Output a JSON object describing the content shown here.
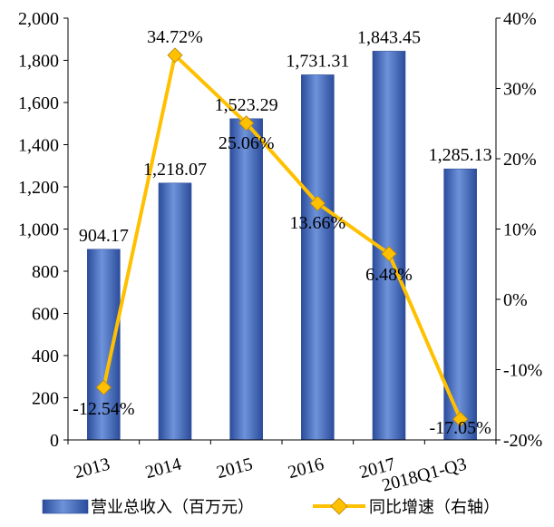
{
  "chart_data": {
    "type": "bar",
    "categories": [
      "2013",
      "2014",
      "2015",
      "2016",
      "2017",
      "2018Q1-Q3"
    ],
    "series": [
      {
        "name": "营业总收入（百万元）",
        "type": "bar",
        "axis": "left",
        "values": [
          904.17,
          1218.07,
          1523.29,
          1731.31,
          1843.45,
          1285.13
        ],
        "labels": [
          "904.17",
          "1,218.07",
          "1,523.29",
          "1,731.31",
          "1,843.45",
          "1,285.13"
        ],
        "color": "#4472C4"
      },
      {
        "name": "同比增速（右轴）",
        "type": "line",
        "axis": "right",
        "values": [
          -12.54,
          34.72,
          25.06,
          13.66,
          6.48,
          -17.05
        ],
        "labels": [
          "-12.54%",
          "34.72%",
          "25.06%",
          "13.66%",
          "6.48%",
          "-17.05%"
        ],
        "color": "#FFC000"
      }
    ],
    "ylim": [
      0,
      2000
    ],
    "y_ticks": [
      "0",
      "200",
      "400",
      "600",
      "800",
      "1,000",
      "1,200",
      "1,400",
      "1,600",
      "1,800",
      "2,000"
    ],
    "y2lim": [
      -20,
      40
    ],
    "y2_ticks": [
      "-20%",
      "-10%",
      "0%",
      "10%",
      "20%",
      "30%",
      "40%"
    ],
    "grid": false,
    "legend": "bottom"
  }
}
